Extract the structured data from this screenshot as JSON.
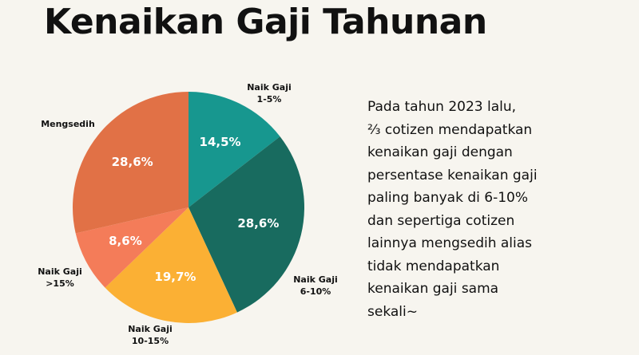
{
  "chart_data": {
    "type": "pie",
    "title": "Kenaikan Gaji Tahunan",
    "categories": [
      "Naik Gaji 1-5%",
      "Naik Gaji 6-10%",
      "Naik Gaji 10-15%",
      "Naik Gaji >15%",
      "Mengsedih"
    ],
    "values": [
      14.5,
      28.6,
      19.7,
      8.6,
      28.6
    ],
    "value_labels": [
      "14,5%",
      "28,6%",
      "19,7%",
      "8,6%",
      "28,6%"
    ],
    "colors": [
      "#17978f",
      "#186b5f",
      "#fbb034",
      "#f47c59",
      "#e17146"
    ],
    "description": [
      "Pada tahun 2023 lalu,",
      "⅔ cotizen mendapatkan",
      "kenaikan gaji dengan",
      "persentase kenaikan gaji",
      "paling banyak di 6-10%",
      "dan sepertiga cotizen",
      "lainnya mengsedih alias",
      "tidak mendapatkan",
      "kenaikan gaji sama",
      "sekali~"
    ]
  }
}
